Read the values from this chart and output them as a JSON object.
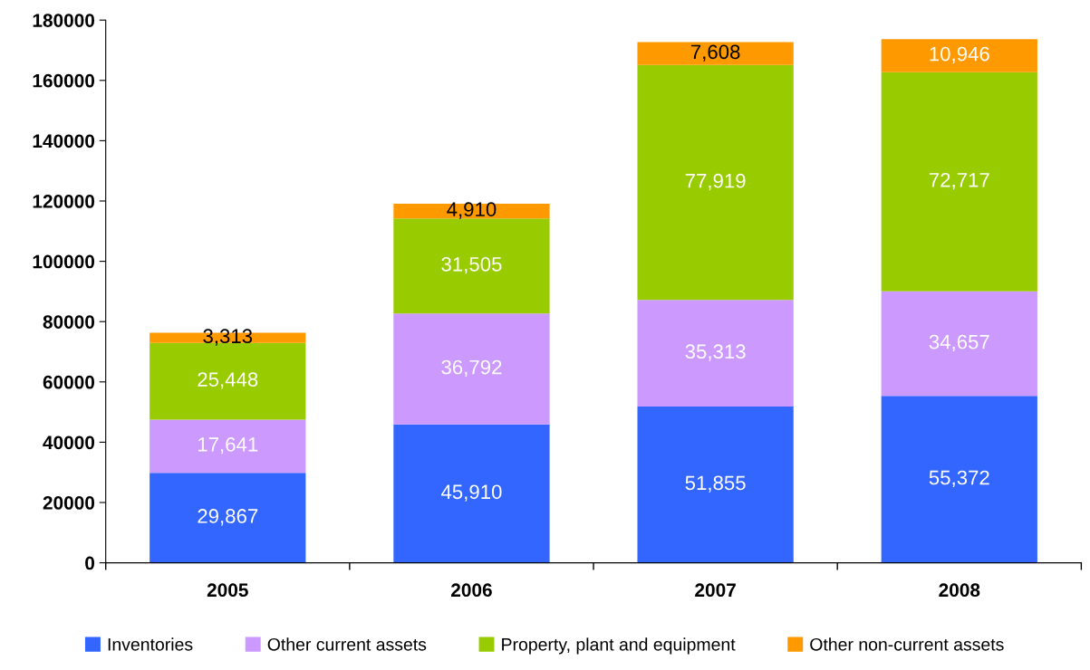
{
  "chart_data": {
    "type": "bar",
    "stacked": true,
    "categories": [
      "2005",
      "2006",
      "2007",
      "2008"
    ],
    "series": [
      {
        "name": "Inventories",
        "color": "#3366ff",
        "values": [
          29867,
          45910,
          51855,
          55372
        ],
        "value_labels": [
          "29,867",
          "45,910",
          "51,855",
          "55,372"
        ]
      },
      {
        "name": "Other current assets",
        "color": "#cc99ff",
        "values": [
          17641,
          36792,
          35313,
          34657
        ],
        "value_labels": [
          "17,641",
          "36,792",
          "35,313",
          "34,657"
        ]
      },
      {
        "name": "Property, plant and equipment",
        "color": "#99cc00",
        "values": [
          25448,
          31505,
          77919,
          72717
        ],
        "value_labels": [
          "25,448",
          "31,505",
          "77,919",
          "72,717"
        ]
      },
      {
        "name": "Other non-current assets",
        "color": "#ff9900",
        "values": [
          3313,
          4910,
          7608,
          10946
        ],
        "value_labels": [
          "3,313",
          "4,910",
          "7,608",
          "10,946"
        ]
      }
    ],
    "ylim": [
      0,
      180000
    ],
    "yticks": [
      0,
      20000,
      40000,
      60000,
      80000,
      100000,
      120000,
      140000,
      160000,
      180000
    ],
    "grid": false,
    "legend": "bottom"
  }
}
